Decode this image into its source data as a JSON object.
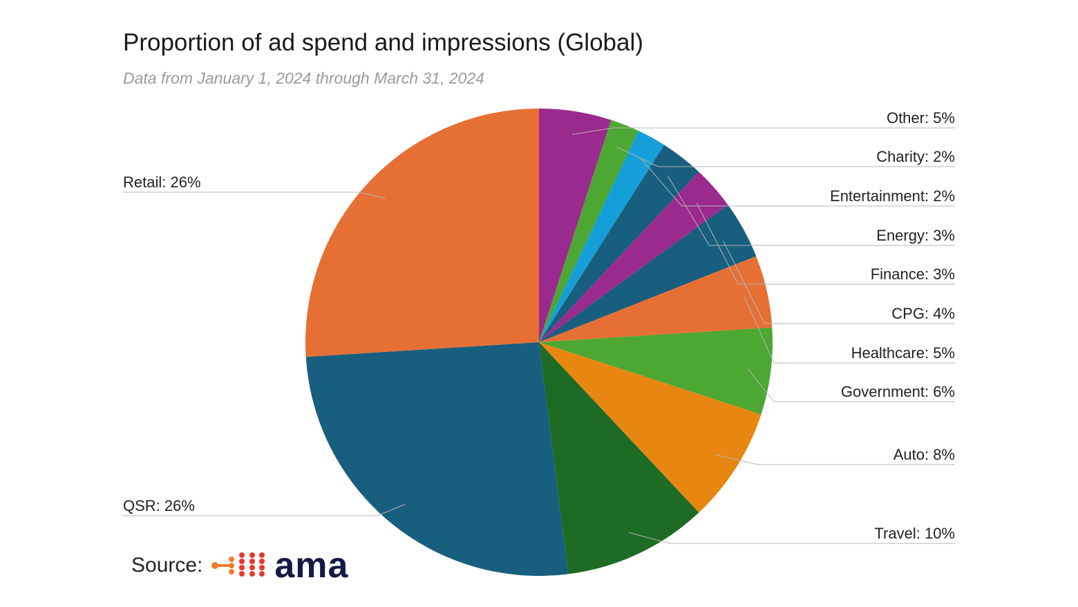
{
  "chart_data": {
    "type": "pie",
    "title": "Proportion of ad spend and impressions (Global)",
    "subtitle": "Data from January 1, 2024 through March 31, 2024",
    "slices": [
      {
        "name": "Other",
        "value": 5,
        "label": "Other: 5%",
        "color": "#9b2a8e"
      },
      {
        "name": "Charity",
        "value": 2,
        "label": "Charity: 2%",
        "color": "#4ca832"
      },
      {
        "name": "Entertainment",
        "value": 2,
        "label": "Entertainment: 2%",
        "color": "#159fd8"
      },
      {
        "name": "Energy",
        "value": 3,
        "label": "Energy: 3%",
        "color": "#175e7f"
      },
      {
        "name": "Finance",
        "value": 3,
        "label": "Finance: 3%",
        "color": "#9b2a8e"
      },
      {
        "name": "CPG",
        "value": 4,
        "label": "CPG: 4%",
        "color": "#175e7f"
      },
      {
        "name": "Healthcare",
        "value": 5,
        "label": "Healthcare: 5%",
        "color": "#e67034"
      },
      {
        "name": "Government",
        "value": 6,
        "label": "Government: 6%",
        "color": "#4ca832"
      },
      {
        "name": "Auto",
        "value": 8,
        "label": "Auto: 8%",
        "color": "#e88612"
      },
      {
        "name": "Travel",
        "value": 10,
        "label": "Travel: 10%",
        "color": "#1d6b24"
      },
      {
        "name": "QSR",
        "value": 26,
        "label": "QSR: 26%",
        "color": "#175e7f"
      },
      {
        "name": "Retail",
        "value": 26,
        "label": "Retail: 26%",
        "color": "#e67034"
      }
    ]
  },
  "source": {
    "label": "Source:",
    "brand": "ama",
    "logo_colors": [
      "#e8362e",
      "#f07b2b"
    ]
  }
}
